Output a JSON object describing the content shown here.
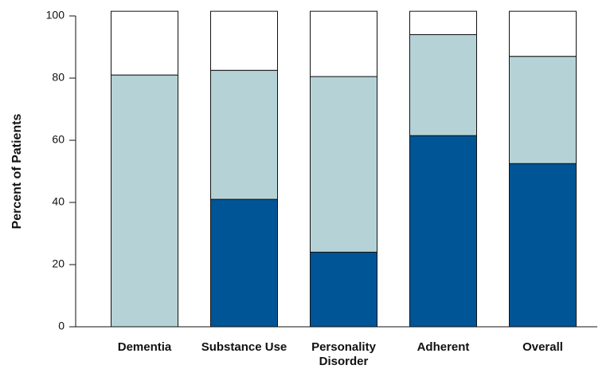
{
  "chart_data": {
    "type": "stacked_bar",
    "y_label": "Percent of Patients",
    "categories": [
      "Dementia",
      "Substance Use",
      "Personality Disorder",
      "Adherent",
      "Overall"
    ],
    "series": [
      {
        "color": "#005596",
        "values": [
          0,
          41,
          24,
          61.5,
          52.5
        ]
      },
      {
        "color": "#b5d3d6",
        "values": [
          81,
          41.5,
          56.5,
          32.5,
          34.5
        ]
      },
      {
        "color": "#ffffff",
        "values": [
          20.5,
          19,
          21,
          7.5,
          14.5
        ]
      }
    ],
    "ylim": [
      0,
      100
    ],
    "yticks": [
      0,
      20,
      40,
      60,
      80,
      100
    ]
  }
}
